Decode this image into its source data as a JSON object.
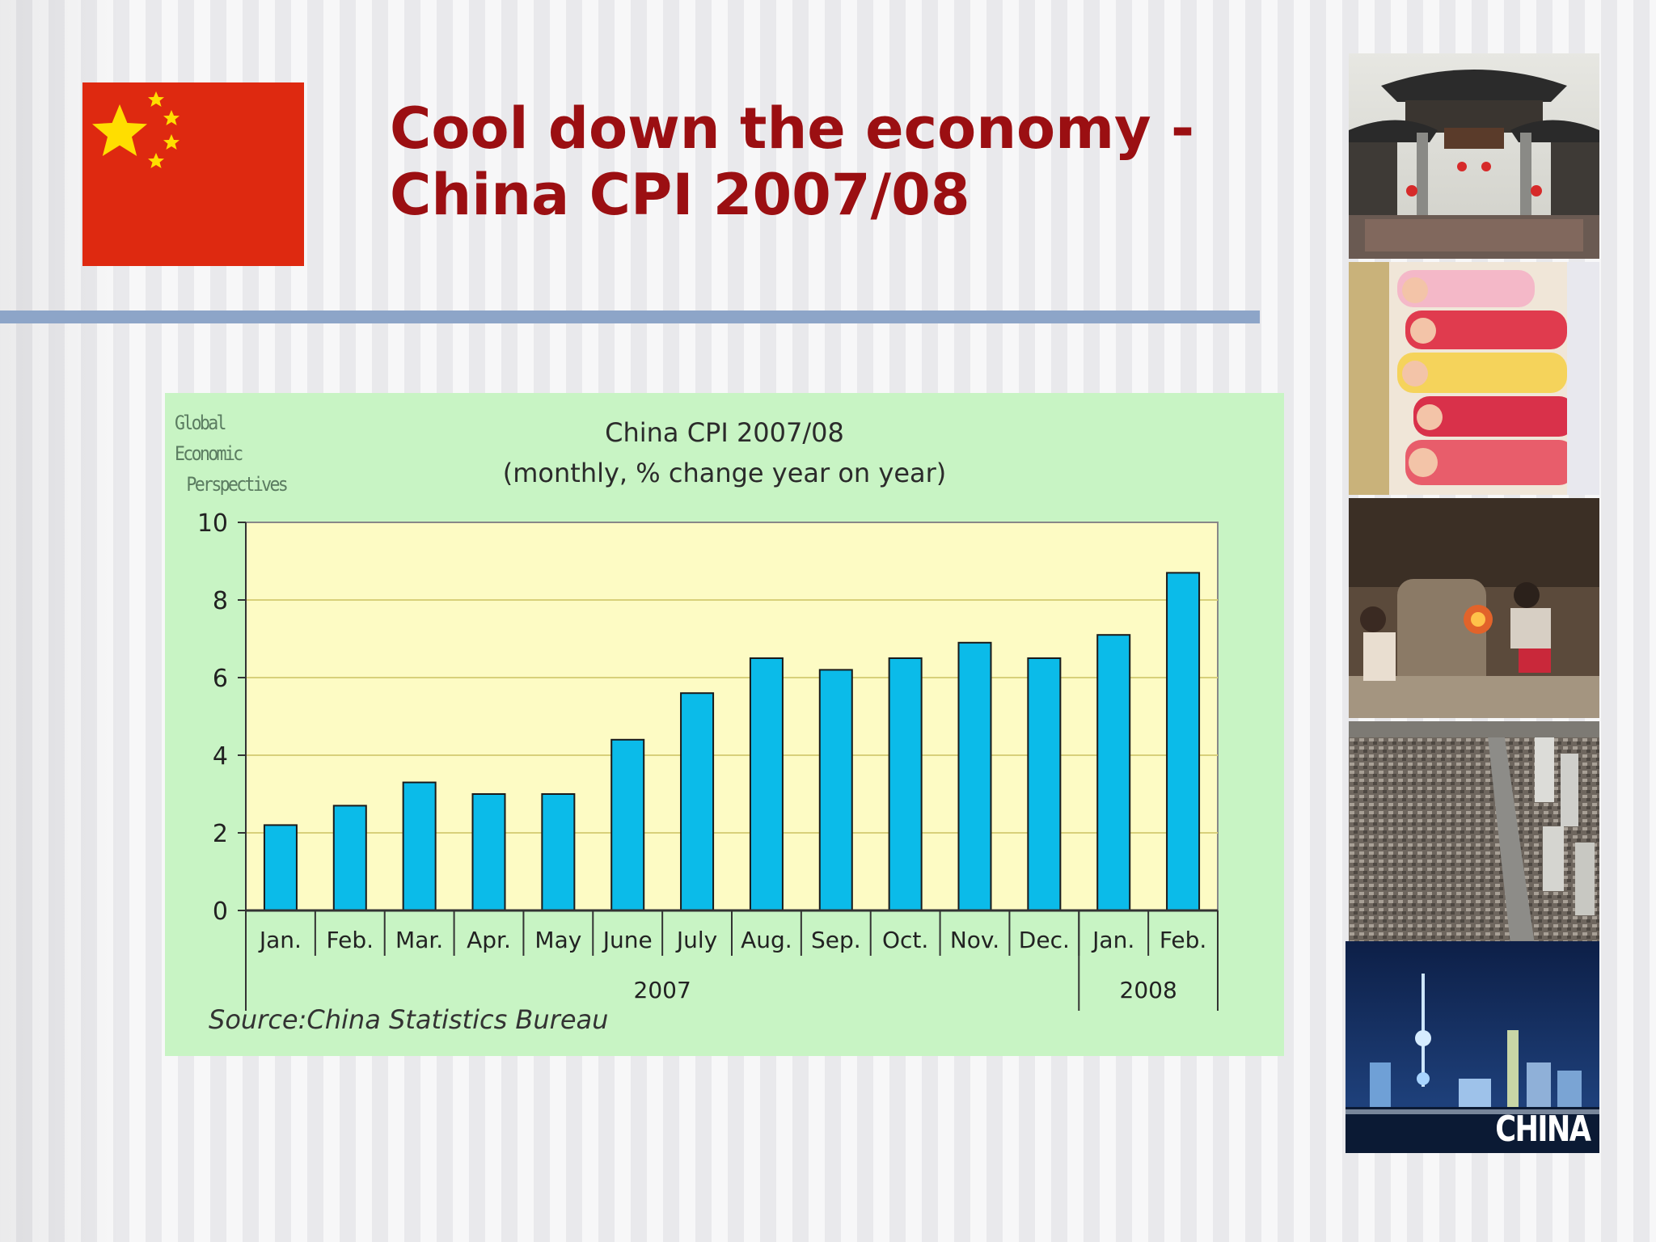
{
  "slide": {
    "title_line1": "Cool down the economy -",
    "title_line2": "China CPI 2007/08"
  },
  "colors": {
    "title": "#9b0f12",
    "rule": "#8da5c8",
    "flag_red": "#de2910",
    "flag_star": "#ffde00",
    "chart_panel": "#c8f4c4",
    "plot_bg": "#fdfbc4",
    "bar": "#0bbbe9",
    "gridline": "#d8d07a"
  },
  "chart_data": {
    "type": "bar",
    "watermark": [
      "Global Economic",
      "Perspectives"
    ],
    "title": "China CPI 2007/08",
    "subtitle": "(monthly,  % change year on year)",
    "categories": [
      "Jan.",
      "Feb.",
      "Mar.",
      "Apr.",
      "May",
      "June",
      "July",
      "Aug.",
      "Sep.",
      "Oct.",
      "Nov.",
      "Dec.",
      "Jan.",
      "Feb."
    ],
    "year_groups": [
      {
        "label": "2007",
        "count": 12
      },
      {
        "label": "2008",
        "count": 2
      }
    ],
    "values": [
      2.2,
      2.7,
      3.3,
      3.0,
      3.0,
      4.4,
      5.6,
      6.5,
      6.2,
      6.5,
      6.9,
      6.5,
      7.1,
      8.7
    ],
    "ylim": [
      0,
      10
    ],
    "yticks": [
      0,
      2,
      4,
      6,
      8,
      10
    ],
    "grid": true,
    "source": "Source:China  Statistics Bureau"
  },
  "photos": {
    "china_label": "CHINA"
  }
}
